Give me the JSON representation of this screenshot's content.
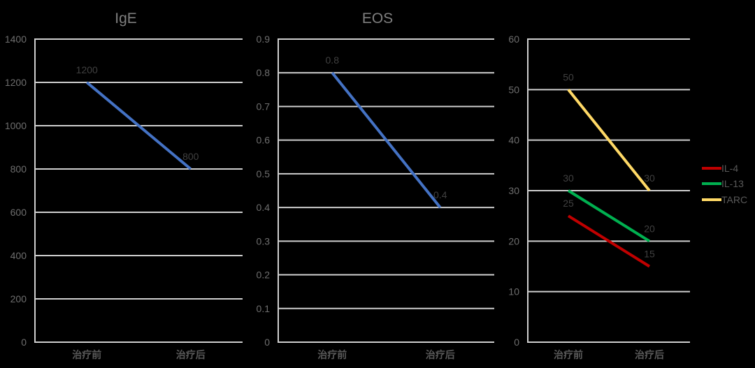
{
  "chart_data": [
    {
      "type": "line",
      "title": "IgE",
      "xlabel": "",
      "ylabel": "",
      "categories": [
        "治疗前",
        "治疗后"
      ],
      "series": [
        {
          "name": "IgE",
          "values": [
            1200,
            800
          ],
          "color": "#4472C4"
        }
      ],
      "ylim": [
        0,
        1400
      ],
      "yticks": [
        "0",
        "200",
        "400",
        "600",
        "800",
        "1000",
        "1200",
        "1400"
      ],
      "grid": true,
      "legend": null,
      "data_labels": true
    },
    {
      "type": "line",
      "title": "EOS",
      "xlabel": "",
      "ylabel": "",
      "categories": [
        "治疗前",
        "治疗后"
      ],
      "series": [
        {
          "name": "EOS",
          "values": [
            0.8,
            0.4
          ],
          "color": "#4472C4"
        }
      ],
      "ylim": [
        0,
        0.9
      ],
      "yticks": [
        "0",
        "0.1",
        "0.2",
        "0.3",
        "0.4",
        "0.5",
        "0.6",
        "0.7",
        "0.8",
        "0.9"
      ],
      "grid": true,
      "legend": null,
      "data_labels": true
    },
    {
      "type": "line",
      "title": "",
      "xlabel": "",
      "ylabel": "",
      "categories": [
        "治疗前",
        "治疗后"
      ],
      "series": [
        {
          "name": "IL-4",
          "values": [
            25,
            15
          ],
          "color": "#C00000"
        },
        {
          "name": "IL-13",
          "values": [
            30,
            20
          ],
          "color": "#00B050"
        },
        {
          "name": "TARC",
          "values": [
            50,
            30
          ],
          "color": "#FFD966"
        }
      ],
      "ylim": [
        0,
        60
      ],
      "yticks": [
        "0",
        "10",
        "20",
        "30",
        "40",
        "50",
        "60"
      ],
      "grid": true,
      "legend": {
        "position": "right",
        "entries": [
          "IL-4",
          "IL-13",
          "TARC"
        ]
      },
      "data_labels": true
    }
  ]
}
